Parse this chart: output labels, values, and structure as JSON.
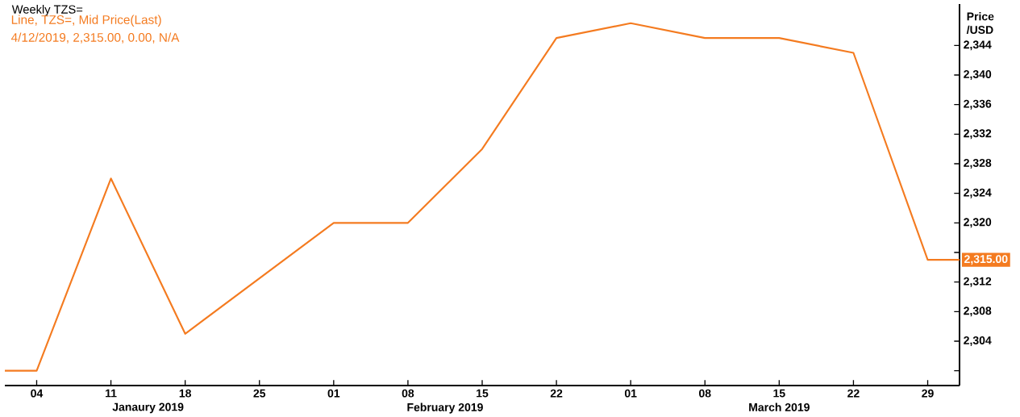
{
  "chart_data": {
    "type": "line",
    "title": "Weekly TZS=",
    "subtitle": "4/12/2019, 2,315.00, 0.00, N/A",
    "ylabel": "Price /USD",
    "x": [
      "2019-01-01",
      "2019-01-04",
      "2019-01-11",
      "2019-01-18",
      "2019-02-01",
      "2019-02-08",
      "2019-02-15",
      "2019-02-22",
      "2019-03-01",
      "2019-03-08",
      "2019-03-15",
      "2019-03-22",
      "2019-03-29",
      "2019-04-01"
    ],
    "series": [
      {
        "name": "Line, TZS=, Mid Price(Last)",
        "color": "#f47b20",
        "values": [
          2300,
          2300,
          2326,
          2305,
          2320,
          2320,
          2330,
          2345,
          2347,
          2345,
          2345,
          2343,
          2315,
          2315
        ]
      }
    ],
    "xlim": [
      "2019-01-01",
      "2019-04-01"
    ],
    "xticks": [
      {
        "value": "2019-01-04",
        "label": "04"
      },
      {
        "value": "2019-01-11",
        "label": "11"
      },
      {
        "value": "2019-01-18",
        "label": "18"
      },
      {
        "value": "2019-01-25",
        "label": "25"
      },
      {
        "value": "2019-02-01",
        "label": "01"
      },
      {
        "value": "2019-02-08",
        "label": "08"
      },
      {
        "value": "2019-02-15",
        "label": "15"
      },
      {
        "value": "2019-02-22",
        "label": "22"
      },
      {
        "value": "2019-03-01",
        "label": "01"
      },
      {
        "value": "2019-03-08",
        "label": "08"
      },
      {
        "value": "2019-03-15",
        "label": "15"
      },
      {
        "value": "2019-03-22",
        "label": "22"
      },
      {
        "value": "2019-03-29",
        "label": "29"
      }
    ],
    "ylim": [
      2298,
      2349.6
    ],
    "yticks": [
      {
        "value": 2300,
        "label": null
      },
      {
        "value": 2304,
        "label": "2,304"
      },
      {
        "value": 2308,
        "label": "2,308"
      },
      {
        "value": 2312,
        "label": "2,312"
      },
      {
        "value": 2316,
        "label": null
      },
      {
        "value": 2320,
        "label": "2,320"
      },
      {
        "value": 2324,
        "label": "2,324"
      },
      {
        "value": 2328,
        "label": "2,328"
      },
      {
        "value": 2332,
        "label": "2,332"
      },
      {
        "value": 2336,
        "label": "2,336"
      },
      {
        "value": 2340,
        "label": "2,340"
      },
      {
        "value": 2344,
        "label": "2,344"
      }
    ],
    "annotations": [
      "Janaury 2019",
      "February 2019",
      "March 2019",
      "2,315.00"
    ]
  }
}
